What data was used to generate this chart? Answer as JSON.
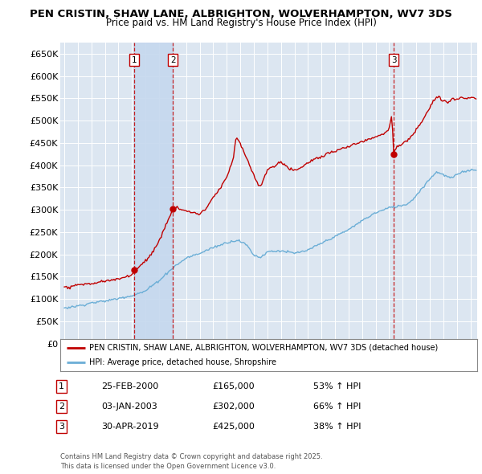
{
  "title": "PEN CRISTIN, SHAW LANE, ALBRIGHTON, WOLVERHAMPTON, WV7 3DS",
  "subtitle": "Price paid vs. HM Land Registry's House Price Index (HPI)",
  "background_color": "#ffffff",
  "plot_bg_color": "#dce6f1",
  "shaded_region_color": "#c5d8ee",
  "grid_color": "#ffffff",
  "ylim": [
    0,
    675000
  ],
  "yticks": [
    0,
    50000,
    100000,
    150000,
    200000,
    250000,
    300000,
    350000,
    400000,
    450000,
    500000,
    550000,
    600000,
    650000
  ],
  "xlim_start": 1994.7,
  "xlim_end": 2025.5,
  "transactions": [
    {
      "num": 1,
      "date_label": "25-FEB-2000",
      "price": 165000,
      "hpi_pct": "53% ↑ HPI",
      "year_x": 2000.15
    },
    {
      "num": 2,
      "date_label": "03-JAN-2003",
      "price": 302000,
      "hpi_pct": "66% ↑ HPI",
      "year_x": 2003.02
    },
    {
      "num": 3,
      "date_label": "30-APR-2019",
      "price": 425000,
      "hpi_pct": "38% ↑ HPI",
      "year_x": 2019.33
    }
  ],
  "legend_house_label": "PEN CRISTIN, SHAW LANE, ALBRIGHTON, WOLVERHAMPTON, WV7 3DS (detached house)",
  "legend_hpi_label": "HPI: Average price, detached house, Shropshire",
  "footer": "Contains HM Land Registry data © Crown copyright and database right 2025.\nThis data is licensed under the Open Government Licence v3.0.",
  "house_line_color": "#c00000",
  "hpi_line_color": "#6baed6",
  "vline_color": "#c00000",
  "marker_color": "#c00000",
  "box_color": "#c00000"
}
